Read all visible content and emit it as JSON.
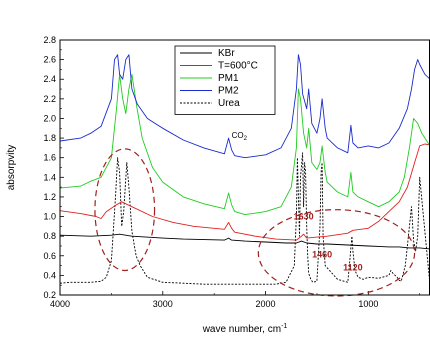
{
  "chart_data": {
    "type": "line",
    "xlabel": "wave number, cm",
    "xlabel_sup": "-1",
    "ylabel": "absorpvity",
    "xlim": [
      4000,
      400
    ],
    "ylim": [
      0.2,
      2.8
    ],
    "x_ticks": [
      4000,
      3000,
      2000,
      1000
    ],
    "y_ticks": [
      0.2,
      0.4,
      0.6,
      0.8,
      1.0,
      1.2,
      1.4,
      1.6,
      1.8,
      2.0,
      2.2,
      2.4,
      2.6,
      2.8
    ],
    "legend": {
      "placement": "top-center"
    },
    "series": [
      {
        "name": "KBr",
        "color": "#000000",
        "dash": "solid",
        "x": [
          4000,
          3700,
          3500,
          3420,
          3300,
          3000,
          2800,
          2400,
          2360,
          2330,
          2200,
          2000,
          1800,
          1700,
          1650,
          1600,
          1500,
          1400,
          1200,
          1000,
          800,
          700,
          600,
          500,
          400
        ],
        "y": [
          0.81,
          0.8,
          0.81,
          0.82,
          0.8,
          0.78,
          0.77,
          0.76,
          0.78,
          0.76,
          0.75,
          0.74,
          0.73,
          0.73,
          0.75,
          0.73,
          0.72,
          0.72,
          0.71,
          0.7,
          0.69,
          0.69,
          0.68,
          0.68,
          0.67
        ]
      },
      {
        "name": "T=600°C",
        "color": "#e02020",
        "dash": "solid",
        "x": [
          4000,
          3800,
          3650,
          3600,
          3550,
          3450,
          3400,
          3300,
          3100,
          2900,
          2700,
          2400,
          2360,
          2330,
          2300,
          2100,
          1900,
          1700,
          1650,
          1630,
          1600,
          1500,
          1400,
          1200,
          1150,
          1000,
          900,
          800,
          700,
          620,
          550,
          500,
          450,
          400
        ],
        "y": [
          1.06,
          1.03,
          1.0,
          0.98,
          1.05,
          1.12,
          1.15,
          1.1,
          1.0,
          0.94,
          0.9,
          0.87,
          0.94,
          0.88,
          0.84,
          0.8,
          0.77,
          0.76,
          0.8,
          0.82,
          0.78,
          0.79,
          0.8,
          0.83,
          0.86,
          0.88,
          0.95,
          1.05,
          1.15,
          1.3,
          1.55,
          1.72,
          1.74,
          1.73
        ]
      },
      {
        "name": "PM1",
        "color": "#20cc20",
        "dash": "solid",
        "x": [
          4000,
          3800,
          3700,
          3600,
          3500,
          3450,
          3420,
          3390,
          3360,
          3330,
          3300,
          3250,
          3200,
          3100,
          3000,
          2800,
          2600,
          2400,
          2360,
          2330,
          2300,
          2200,
          2000,
          1850,
          1750,
          1700,
          1680,
          1660,
          1630,
          1600,
          1580,
          1550,
          1500,
          1470,
          1450,
          1420,
          1400,
          1300,
          1200,
          1170,
          1150,
          1100,
          1000,
          900,
          800,
          700,
          650,
          600,
          560,
          520,
          480,
          400
        ],
        "y": [
          1.29,
          1.31,
          1.36,
          1.4,
          1.6,
          2.1,
          2.45,
          2.2,
          2.05,
          2.3,
          2.45,
          2.1,
          1.8,
          1.5,
          1.35,
          1.2,
          1.13,
          1.08,
          1.24,
          1.12,
          1.05,
          1.02,
          1.05,
          1.1,
          1.3,
          1.7,
          2.3,
          2.2,
          1.85,
          1.7,
          1.9,
          1.55,
          1.48,
          1.55,
          1.72,
          1.45,
          1.35,
          1.25,
          1.2,
          1.45,
          1.25,
          1.2,
          1.15,
          1.1,
          1.15,
          1.25,
          1.4,
          1.7,
          2.0,
          1.95,
          1.85,
          1.72
        ]
      },
      {
        "name": "PM2",
        "color": "#1a2bd0",
        "dash": "solid",
        "x": [
          4000,
          3800,
          3700,
          3600,
          3500,
          3470,
          3440,
          3420,
          3390,
          3360,
          3330,
          3300,
          3250,
          3150,
          3000,
          2800,
          2600,
          2400,
          2360,
          2330,
          2300,
          2200,
          2000,
          1850,
          1750,
          1700,
          1680,
          1660,
          1640,
          1600,
          1580,
          1550,
          1500,
          1470,
          1450,
          1420,
          1400,
          1300,
          1200,
          1170,
          1150,
          1100,
          1000,
          900,
          800,
          700,
          620,
          580,
          550,
          520,
          500,
          450,
          400
        ],
        "y": [
          1.77,
          1.8,
          1.85,
          1.92,
          2.2,
          2.6,
          2.65,
          2.45,
          2.4,
          2.6,
          2.65,
          2.3,
          2.15,
          2.0,
          1.9,
          1.78,
          1.7,
          1.64,
          1.8,
          1.68,
          1.62,
          1.6,
          1.63,
          1.7,
          1.9,
          2.3,
          2.65,
          2.55,
          2.25,
          2.1,
          2.3,
          1.95,
          1.85,
          2.0,
          2.2,
          1.9,
          1.8,
          1.7,
          1.65,
          1.93,
          1.75,
          1.7,
          1.72,
          1.7,
          1.75,
          1.9,
          2.1,
          2.3,
          2.5,
          2.6,
          2.55,
          2.45,
          2.4
        ]
      },
      {
        "name": "Urea",
        "color": "#000000",
        "dash": "dashed",
        "x": [
          4000,
          3900,
          3800,
          3700,
          3600,
          3550,
          3500,
          3460,
          3440,
          3420,
          3400,
          3380,
          3350,
          3330,
          3300,
          3260,
          3220,
          3150,
          3000,
          2800,
          2600,
          2400,
          2000,
          1900,
          1800,
          1720,
          1700,
          1690,
          1680,
          1670,
          1660,
          1640,
          1630,
          1620,
          1610,
          1600,
          1590,
          1580,
          1560,
          1540,
          1500,
          1470,
          1460,
          1450,
          1440,
          1420,
          1300,
          1200,
          1180,
          1160,
          1150,
          1130,
          1100,
          1050,
          1000,
          900,
          800,
          780,
          760,
          720,
          700,
          680,
          640,
          620,
          600,
          580,
          560,
          540,
          520,
          500,
          400
        ],
        "y": [
          0.32,
          0.33,
          0.33,
          0.33,
          0.34,
          0.38,
          0.55,
          1.2,
          1.6,
          1.45,
          0.9,
          1.05,
          1.55,
          1.3,
          0.85,
          0.6,
          0.5,
          0.38,
          0.33,
          0.32,
          0.31,
          0.31,
          0.31,
          0.31,
          0.33,
          0.5,
          1.0,
          1.6,
          1.2,
          0.8,
          1.4,
          1.65,
          1.1,
          1.55,
          1.45,
          0.9,
          0.6,
          0.42,
          0.36,
          0.33,
          0.34,
          0.9,
          1.45,
          1.55,
          0.8,
          0.5,
          0.36,
          0.33,
          0.55,
          0.8,
          0.65,
          0.45,
          0.38,
          0.36,
          0.38,
          0.37,
          0.4,
          0.45,
          0.42,
          0.38,
          0.35,
          0.34,
          0.5,
          0.7,
          0.9,
          1.1,
          0.75,
          0.65,
          0.8,
          1.4,
          0.3
        ]
      }
    ],
    "annotations": [
      {
        "text": "1630",
        "x": 1630,
        "y": 0.97,
        "kind": "label"
      },
      {
        "text": "1460",
        "x": 1450,
        "y": 0.58,
        "kind": "label"
      },
      {
        "text": "1120",
        "x": 1150,
        "y": 0.45,
        "kind": "label"
      },
      {
        "text": "CO",
        "sub": "2",
        "x": 2330,
        "y": 1.8,
        "kind": "co2"
      }
    ],
    "ellipses": [
      {
        "cx": 3370,
        "cy": 1.07,
        "rx": 290,
        "ry": 0.62
      },
      {
        "cx": 1310,
        "cy": 0.63,
        "rx": 760,
        "ry": 0.44
      }
    ]
  }
}
